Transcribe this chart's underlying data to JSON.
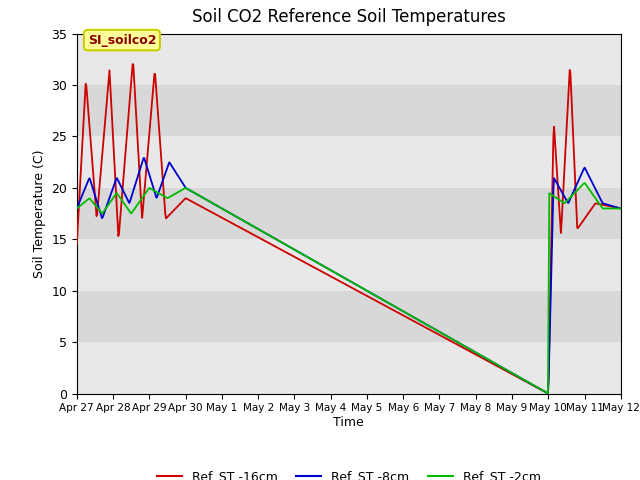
{
  "title": "Soil CO2 Reference Soil Temperatures",
  "xlabel": "Time",
  "ylabel": "Soil Temperature (C)",
  "ylim": [
    0,
    35
  ],
  "xlim": [
    0,
    15
  ],
  "background_color": "#ffffff",
  "plot_bg_color": "#f0f0f0",
  "legend_label": "SI_soilco2",
  "series": {
    "Ref_ST -16cm": {
      "color": "#cc0000"
    },
    "Ref_ST -8cm": {
      "color": "#0000cc"
    },
    "Ref_ST -2cm": {
      "color": "#00bb00"
    }
  },
  "tick_labels": [
    "Apr 27",
    "Apr 28",
    "Apr 29",
    "Apr 30",
    "May 1",
    "May 2",
    "May 3",
    "May 4",
    "May 5",
    "May 6",
    "May 7",
    "May 8",
    "May 9",
    "May 10",
    "May 11",
    "May 12"
  ],
  "band_colors": [
    "#e8e8e8",
    "#d8d8d8"
  ],
  "band_edges": [
    0,
    5,
    10,
    15,
    20,
    25,
    30,
    35
  ]
}
